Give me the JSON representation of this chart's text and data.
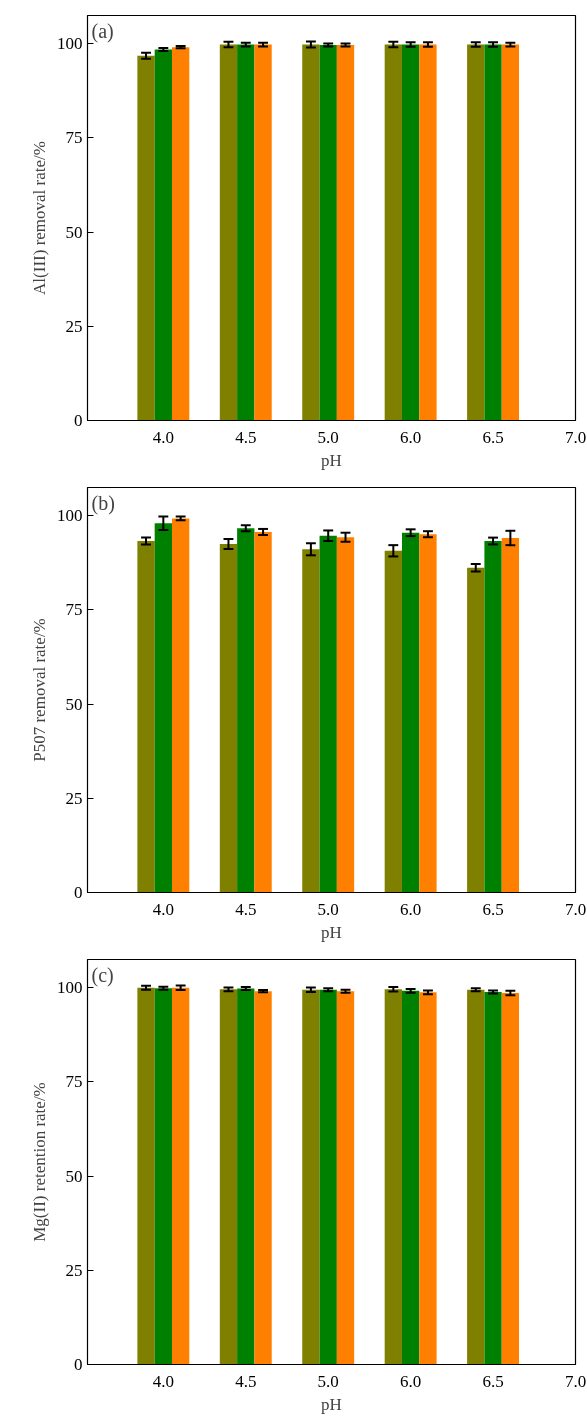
{
  "chart_data": [
    {
      "type": "bar",
      "xlabel": "pH",
      "ylabel": "Al(III) removal rate/%",
      "annotations": [
        "(a)"
      ],
      "categories": [
        "4.0",
        "4.5",
        "5.0",
        "6.0",
        "6.5",
        "7.0"
      ],
      "ylim": [
        0,
        107.5
      ],
      "yticks": [
        0,
        25,
        50,
        75,
        100
      ],
      "grid": false,
      "series": [
        {
          "color": "#808000",
          "values": [
            96.8,
            99.8,
            99.8,
            99.8,
            99.8,
            null
          ],
          "errors": [
            0.8,
            0.7,
            0.8,
            0.7,
            0.6,
            null
          ]
        },
        {
          "color": "#008000",
          "values": [
            98.5,
            99.8,
            99.7,
            99.8,
            99.8,
            null
          ],
          "errors": [
            0.4,
            0.5,
            0.4,
            0.6,
            0.6,
            null
          ]
        },
        {
          "color": "#ff8000",
          "values": [
            99.1,
            99.8,
            99.7,
            99.8,
            99.8,
            null
          ],
          "errors": [
            0.3,
            0.5,
            0.4,
            0.6,
            0.5,
            null
          ]
        }
      ]
    },
    {
      "type": "bar",
      "xlabel": "pH",
      "ylabel": "P507 removal rate/%",
      "annotations": [
        "(b)"
      ],
      "categories": [
        "4.0",
        "4.5",
        "5.0",
        "6.0",
        "6.5",
        "7.0"
      ],
      "ylim": [
        0,
        107.5
      ],
      "yticks": [
        0,
        25,
        50,
        75,
        100
      ],
      "grid": false,
      "series": [
        {
          "color": "#808000",
          "values": [
            93.3,
            92.5,
            91.1,
            90.7,
            86.2,
            null
          ],
          "errors": [
            0.9,
            1.3,
            1.6,
            1.5,
            1.0,
            null
          ]
        },
        {
          "color": "#008000",
          "values": [
            98.0,
            96.7,
            94.7,
            95.5,
            93.3,
            null
          ],
          "errors": [
            1.8,
            0.8,
            1.4,
            0.9,
            0.9,
            null
          ]
        },
        {
          "color": "#ff8000",
          "values": [
            99.3,
            95.7,
            94.3,
            95.1,
            94.1,
            null
          ],
          "errors": [
            0.5,
            0.8,
            1.2,
            0.8,
            1.9,
            null
          ]
        }
      ]
    },
    {
      "type": "bar",
      "xlabel": "pH",
      "ylabel": "Mg(II) retention rate/%",
      "annotations": [
        "(c)"
      ],
      "categories": [
        "4.0",
        "4.5",
        "5.0",
        "6.0",
        "6.5",
        "7.0"
      ],
      "ylim": [
        0,
        107.5
      ],
      "yticks": [
        0,
        25,
        50,
        75,
        100
      ],
      "grid": false,
      "series": [
        {
          "color": "#808000",
          "values": [
            100.0,
            99.6,
            99.5,
            99.6,
            99.5,
            null
          ],
          "errors": [
            0.5,
            0.5,
            0.6,
            0.6,
            0.4,
            null
          ]
        },
        {
          "color": "#008000",
          "values": [
            99.9,
            99.8,
            99.5,
            99.2,
            98.9,
            null
          ],
          "errors": [
            0.4,
            0.4,
            0.4,
            0.5,
            0.4,
            null
          ]
        },
        {
          "color": "#ff8000",
          "values": [
            100.0,
            99.1,
            99.1,
            98.8,
            98.6,
            null
          ],
          "errors": [
            0.6,
            0.3,
            0.4,
            0.5,
            0.6,
            null
          ]
        }
      ]
    }
  ]
}
